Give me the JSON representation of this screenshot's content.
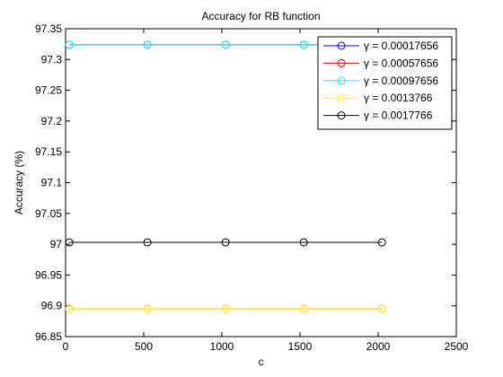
{
  "chart_data": {
    "type": "line",
    "title": "Accuracy for RB function",
    "xlabel": "c",
    "ylabel": "Accuracy  (%)",
    "xlim": [
      0,
      2500
    ],
    "ylim": [
      96.85,
      97.35
    ],
    "xticks": [
      0,
      500,
      1000,
      1500,
      2000,
      2500
    ],
    "yticks": [
      96.85,
      96.9,
      96.95,
      97,
      97.05,
      97.1,
      97.15,
      97.2,
      97.25,
      97.3,
      97.35
    ],
    "xtick_labels": [
      "0",
      "500",
      "1000",
      "1500",
      "2000",
      "2500"
    ],
    "ytick_labels": [
      "96.85",
      "96.9",
      "96.95",
      "97",
      "97.05",
      "97.1",
      "97.15",
      "97.2",
      "97.25",
      "97.3",
      "97.35"
    ],
    "grid": false,
    "legend_position": "top-right",
    "x": [
      24,
      524,
      1024,
      1524,
      2024
    ],
    "series": [
      {
        "name": "γ = 0.00017656",
        "color": "#0000ff",
        "values": [
          97.324,
          97.324,
          97.324,
          97.324,
          97.324
        ]
      },
      {
        "name": "γ = 0.00057656",
        "color": "#ff0000",
        "values": [
          96.895,
          96.895,
          96.895,
          96.895,
          96.895
        ]
      },
      {
        "name": "γ = 0.00097656",
        "color": "#00ffff",
        "values": [
          97.324,
          97.324,
          97.324,
          97.324,
          97.324
        ]
      },
      {
        "name": "γ = 0.0013766",
        "color": "#ffff00",
        "values": [
          96.895,
          96.895,
          96.895,
          96.895,
          96.895
        ]
      },
      {
        "name": "γ = 0.0017766",
        "color": "#000000",
        "values": [
          97.003,
          97.003,
          97.003,
          97.003,
          97.003
        ]
      }
    ]
  }
}
